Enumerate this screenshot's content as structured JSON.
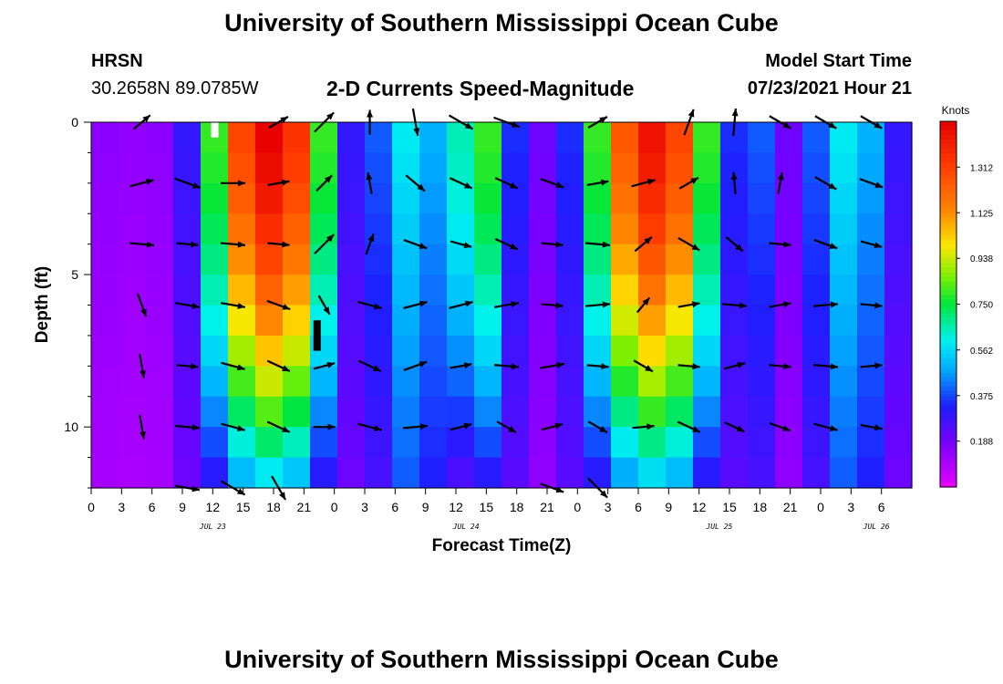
{
  "header": {
    "title": "University of Southern Mississippi Ocean Cube",
    "station": "HRSN",
    "coords": "30.2658N  89.0785W",
    "plot_title": "2-D Currents Speed-Magnitude",
    "model_label": "Model Start Time",
    "model_time": "07/23/2021 Hour 21"
  },
  "footer": {
    "title": "University of Southern Mississippi Ocean Cube"
  },
  "colors": {
    "bg": "#ffffff",
    "arrow": "#000000",
    "plot_border": "#000000"
  },
  "chart_data": {
    "type": "heatmap",
    "title": "2-D Currents Speed-Magnitude",
    "xlabel": "Forecast Time(Z)",
    "ylabel": "Depth (ft)",
    "x_range_hours": [
      0,
      81
    ],
    "x_start": "07/23 00Z",
    "y_range": [
      0,
      12
    ],
    "y_ticks": [
      0,
      5,
      10
    ],
    "x_tick_labels": [
      "0",
      "3",
      "6",
      "9",
      "12",
      "15",
      "18",
      "21",
      "0",
      "3",
      "6",
      "9",
      "12",
      "15",
      "18",
      "21",
      "0",
      "3",
      "6",
      "9",
      "12",
      "15",
      "18",
      "21",
      "0",
      "3",
      "6"
    ],
    "date_labels": [
      {
        "text": "JUL 23",
        "hour": 12
      },
      {
        "text": "JUL 24",
        "hour": 37
      },
      {
        "text": "JUL 25",
        "hour": 62
      },
      {
        "text": "JUL 26",
        "hour": 77.5
      }
    ],
    "colorbar": {
      "unit": "Knots",
      "min": 0.0,
      "max": 1.5,
      "ticks": [
        "1.312",
        "1.125",
        "0.938",
        "0.750",
        "0.562",
        "0.375",
        "0.188"
      ]
    },
    "surface_speed_profile_knots": [
      0.15,
      0.14,
      0.15,
      0.3,
      0.8,
      1.3,
      1.5,
      1.35,
      0.8,
      0.3,
      0.4,
      0.6,
      0.5,
      0.65,
      0.8,
      0.35,
      0.2,
      0.35,
      0.8,
      1.25,
      1.45,
      1.3,
      0.8,
      0.35,
      0.4,
      0.2,
      0.4,
      0.6,
      0.5,
      0.3
    ],
    "vector_rows_depth_ft": [
      0,
      2,
      4,
      6,
      8,
      10,
      12
    ],
    "vector_cols_hour": [
      5,
      9.5,
      14,
      18.5,
      23,
      27.5,
      32,
      36.5,
      41,
      45.5,
      50,
      54.5,
      59,
      63.5,
      68,
      72.5,
      77
    ],
    "vector_angles_deg": [
      [
        40,
        40,
        20,
        30,
        45,
        90,
        280,
        330,
        340,
        20,
        30,
        45,
        70,
        85,
        330,
        330,
        330
      ],
      [
        15,
        340,
        0,
        10,
        45,
        100,
        320,
        335,
        335,
        340,
        10,
        15,
        30,
        95,
        80,
        330,
        340
      ],
      [
        355,
        355,
        355,
        355,
        45,
        70,
        340,
        345,
        335,
        355,
        355,
        40,
        330,
        320,
        355,
        340,
        345
      ],
      [
        290,
        350,
        350,
        340,
        300,
        345,
        15,
        15,
        10,
        355,
        5,
        50,
        10,
        355,
        10,
        5,
        355
      ],
      [
        280,
        355,
        345,
        335,
        15,
        335,
        20,
        10,
        355,
        10,
        355,
        330,
        355,
        15,
        355,
        355,
        5
      ],
      [
        280,
        355,
        345,
        335,
        0,
        345,
        5,
        15,
        330,
        15,
        330,
        5,
        335,
        335,
        340,
        345,
        350
      ],
      [
        0,
        350,
        330,
        300,
        0,
        0,
        0,
        0,
        0,
        340,
        315,
        0,
        0,
        0,
        0,
        0,
        0
      ]
    ],
    "vector_lengths": [
      [
        0.8,
        0.0,
        0.0,
        0.8,
        1.0,
        0.9,
        1.0,
        1.0,
        1.0,
        0.0,
        0.8,
        0.0,
        1.0,
        1.0,
        0.9,
        0.9,
        0.9
      ],
      [
        0.9,
        1.0,
        0.9,
        0.8,
        0.8,
        0.8,
        0.9,
        0.9,
        0.9,
        0.9,
        0.8,
        0.9,
        0.8,
        0.8,
        0.8,
        0.9,
        0.9
      ],
      [
        0.9,
        0.8,
        0.9,
        0.8,
        1.0,
        0.8,
        0.9,
        0.8,
        0.9,
        0.8,
        0.9,
        0.8,
        0.9,
        0.8,
        0.8,
        0.9,
        0.8
      ],
      [
        0.9,
        0.9,
        0.9,
        0.9,
        0.8,
        0.9,
        0.9,
        0.9,
        0.9,
        0.8,
        0.9,
        0.7,
        0.8,
        0.9,
        0.8,
        0.9,
        0.8
      ],
      [
        0.9,
        0.8,
        0.9,
        0.9,
        0.8,
        0.9,
        0.9,
        0.8,
        0.9,
        0.9,
        0.8,
        0.8,
        0.8,
        0.8,
        0.8,
        0.9,
        0.8
      ],
      [
        0.9,
        0.9,
        0.9,
        0.9,
        0.8,
        0.9,
        0.9,
        0.8,
        0.8,
        0.8,
        0.8,
        0.8,
        0.9,
        0.8,
        0.8,
        0.9,
        0.8
      ],
      [
        0.0,
        0.9,
        1.0,
        1.0,
        0.0,
        0.0,
        0.0,
        0.0,
        0.0,
        0.9,
        1.0,
        0.0,
        0.0,
        0.0,
        0.0,
        0.0,
        0.0
      ]
    ],
    "markers": [
      {
        "type": "white",
        "hour": 12.2,
        "depth_start": 0.0,
        "depth_end": 0.5
      },
      {
        "type": "black",
        "hour": 22.3,
        "depth_start": 6.5,
        "depth_end": 7.5
      }
    ]
  }
}
